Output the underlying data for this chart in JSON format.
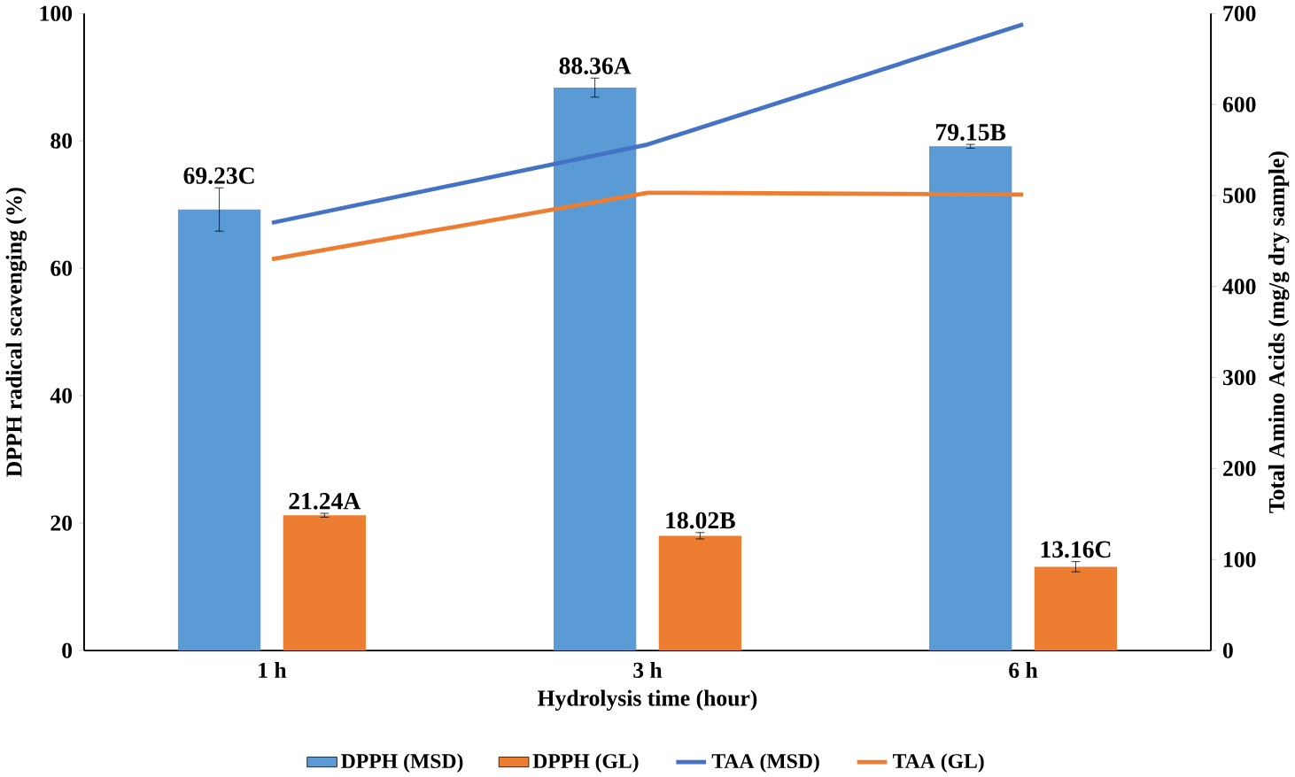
{
  "chart_data": {
    "type": "bar",
    "xlabel": "Hydrolysis time (hour)",
    "ylabel": "DPPH radical scavenging (%)",
    "y2label": "Total Amino Acids (mg/g dry sample)",
    "categories": [
      "1 h",
      "3 h",
      "6 h"
    ],
    "ylim": [
      0,
      100
    ],
    "yticks": [
      0,
      20,
      40,
      60,
      80,
      100
    ],
    "y2lim": [
      0,
      700
    ],
    "y2ticks": [
      0,
      100,
      200,
      300,
      400,
      500,
      600,
      700
    ],
    "legend": "bottom",
    "series": [
      {
        "name": "DPPH (MSD)",
        "color": "#5b9bd5",
        "values": [
          69.23,
          88.36,
          79.15
        ],
        "errors": [
          3.4,
          1.5,
          0.3
        ],
        "value_labels": [
          "69.23C",
          "88.36A",
          "79.15B"
        ]
      },
      {
        "name": "DPPH (GL)",
        "color": "#ed7d31",
        "values": [
          21.24,
          18.02,
          13.16
        ],
        "errors": [
          0.3,
          0.5,
          0.8
        ],
        "value_labels": [
          "21.24A",
          "18.02B",
          "13.16C"
        ]
      },
      {
        "name": "TAA (MSD)",
        "type": "line",
        "axis": "y2",
        "color": "#4472c4",
        "values": [
          470,
          556,
          688
        ]
      },
      {
        "name": "TAA (GL)",
        "type": "line",
        "axis": "y2",
        "color": "#ed7d31",
        "values": [
          430,
          503,
          501
        ]
      }
    ]
  }
}
